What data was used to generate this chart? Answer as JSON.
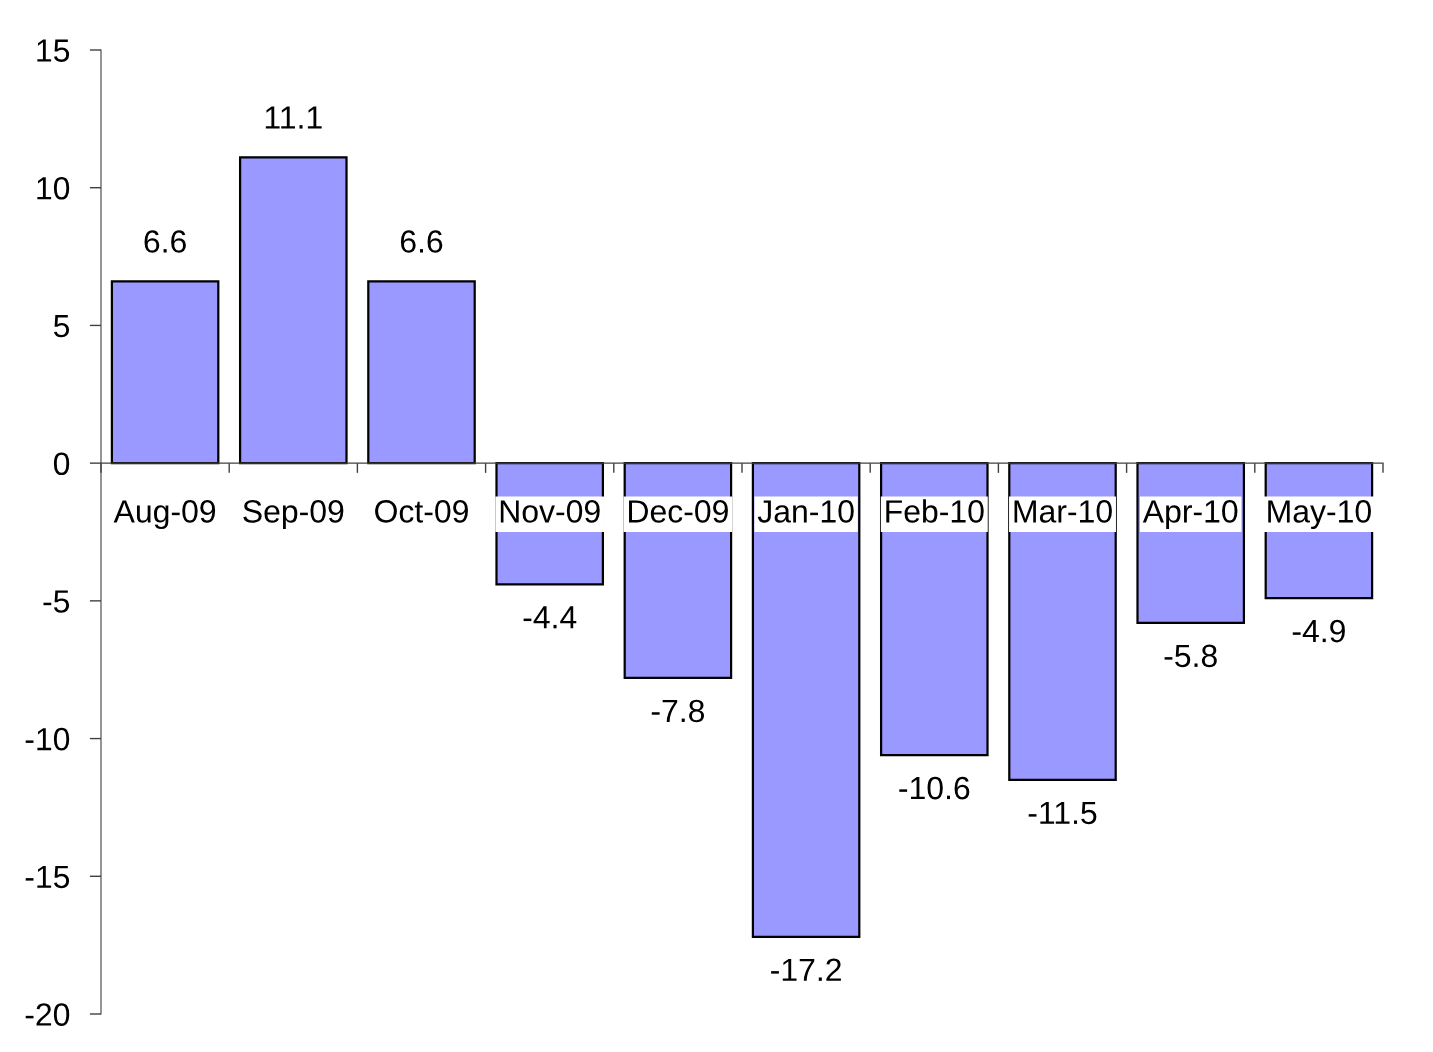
{
  "chart_data": {
    "type": "bar",
    "categories": [
      "Aug-09",
      "Sep-09",
      "Oct-09",
      "Nov-09",
      "Dec-09",
      "Jan-10",
      "Feb-10",
      "Mar-10",
      "Apr-10",
      "May-10"
    ],
    "values": [
      6.6,
      11.1,
      6.6,
      -4.4,
      -7.8,
      -17.2,
      -10.6,
      -11.5,
      -5.8,
      -4.9
    ],
    "color": "#9999ff",
    "ylim": [
      -20,
      15
    ],
    "yticks": [
      -20,
      -15,
      -10,
      -5,
      0,
      5,
      10,
      15
    ],
    "data_labels": true,
    "grid": false,
    "legend": false
  }
}
